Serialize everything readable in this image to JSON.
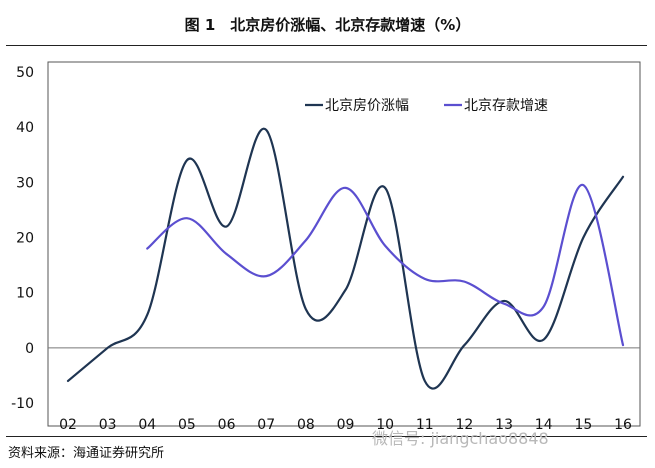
{
  "header": {
    "title": "图 1　北京房价涨幅、北京存款增速（%）"
  },
  "footer": {
    "source": "资料来源：海通证券研究所",
    "watermark": "微信号: jiangchao8848"
  },
  "chart_data": {
    "type": "line",
    "x": [
      "02",
      "03",
      "04",
      "05",
      "06",
      "07",
      "08",
      "09",
      "10",
      "11",
      "12",
      "13",
      "14",
      "15",
      "16"
    ],
    "ylim": [
      -10,
      50
    ],
    "yticks": [
      50,
      40,
      30,
      20,
      10,
      0,
      -10
    ],
    "grid": false,
    "legend_position": "top-right",
    "series": [
      {
        "name": "北京房价涨幅",
        "color": "#1f3552",
        "values": [
          -6,
          0,
          6,
          34,
          22,
          39.5,
          7,
          10.5,
          29,
          -6,
          0.5,
          8.5,
          1.5,
          20,
          31
        ]
      },
      {
        "name": "北京存款增速",
        "color": "#5b4fd0",
        "values": [
          null,
          null,
          18,
          23.5,
          17,
          13,
          19.5,
          29,
          18.5,
          12.5,
          12,
          8,
          7.5,
          29.5,
          0.5
        ]
      }
    ]
  }
}
